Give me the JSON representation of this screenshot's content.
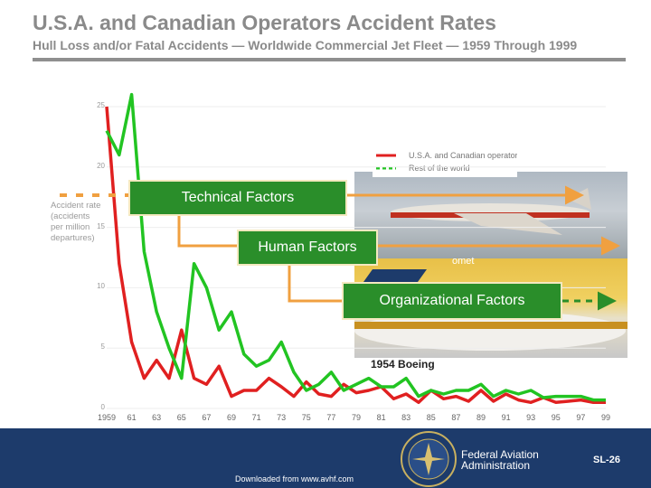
{
  "slide": {
    "title": "U.S.A. and Canadian Operators Accident Rates",
    "subtitle": "Hull Loss and/or Fatal Accidents — Worldwide Commercial Jet Fleet — 1959 Through 1999",
    "factors": [
      "Technical Factors",
      "Human Factors",
      "Organizational Factors"
    ],
    "photo_captions": [
      "1954 Boeing",
      "omet"
    ],
    "faa_name": "Federal Aviation Administration",
    "slide_id": "SL-26",
    "download_note": "Downloaded from www.avhf.com",
    "colors": {
      "accent_orange": "#f0a040",
      "factor_box": "#2a8e2a",
      "footer": "#1d3b6b",
      "us_line": "#e02020",
      "rest_line": "#22c422"
    }
  },
  "chart_data": {
    "type": "line",
    "ylabel": "Accident rate (accidents per million departures)",
    "ylim": [
      0,
      25
    ],
    "yticks": [
      "0",
      "5",
      "10",
      "15",
      "20",
      "25"
    ],
    "xlim": [
      1959,
      1999
    ],
    "xticks": [
      "1959",
      "61",
      "63",
      "65",
      "67",
      "69",
      "71",
      "73",
      "75",
      "77",
      "79",
      "81",
      "83",
      "85",
      "87",
      "89",
      "91",
      "93",
      "95",
      "97",
      "99"
    ],
    "legend": "top-right",
    "series": [
      {
        "name": "U.S.A. and Canadian operators",
        "color": "#e02020",
        "x": [
          1959,
          1960,
          1961,
          1962,
          1963,
          1964,
          1965,
          1966,
          1967,
          1968,
          1969,
          1970,
          1971,
          1972,
          1973,
          1974,
          1975,
          1976,
          1977,
          1978,
          1979,
          1980,
          1981,
          1982,
          1983,
          1984,
          1985,
          1986,
          1987,
          1988,
          1989,
          1990,
          1991,
          1992,
          1993,
          1994,
          1995,
          1996,
          1997,
          1998,
          1999
        ],
        "y": [
          25,
          12,
          5.5,
          2.5,
          4,
          2.5,
          6.5,
          2.5,
          2,
          3.5,
          1,
          1.5,
          1.5,
          2.5,
          1.8,
          1,
          2.2,
          1.2,
          1,
          2,
          1.3,
          1.5,
          1.8,
          0.8,
          1.2,
          0.5,
          1.5,
          0.8,
          1,
          0.6,
          1.5,
          0.6,
          1.2,
          0.7,
          0.5,
          0.9,
          0.5,
          0.6,
          0.7,
          0.5,
          0.5
        ]
      },
      {
        "name": "Rest of the world",
        "color": "#22c422",
        "x": [
          1959,
          1960,
          1961,
          1962,
          1963,
          1964,
          1965,
          1966,
          1967,
          1968,
          1969,
          1970,
          1971,
          1972,
          1973,
          1974,
          1975,
          1976,
          1977,
          1978,
          1979,
          1980,
          1981,
          1982,
          1983,
          1984,
          1985,
          1986,
          1987,
          1988,
          1989,
          1990,
          1991,
          1992,
          1993,
          1994,
          1995,
          1996,
          1997,
          1998,
          1999
        ],
        "y": [
          23,
          21,
          26,
          13,
          8,
          5,
          2.5,
          12,
          10,
          6.5,
          8,
          4.5,
          3.5,
          4,
          5.5,
          3,
          1.5,
          2,
          3,
          1.5,
          2,
          2.5,
          1.8,
          1.8,
          2.5,
          1,
          1.5,
          1.2,
          1.5,
          1.5,
          2,
          1,
          1.5,
          1.2,
          1.5,
          0.9,
          1,
          1,
          1,
          0.7,
          0.7
        ]
      }
    ]
  }
}
